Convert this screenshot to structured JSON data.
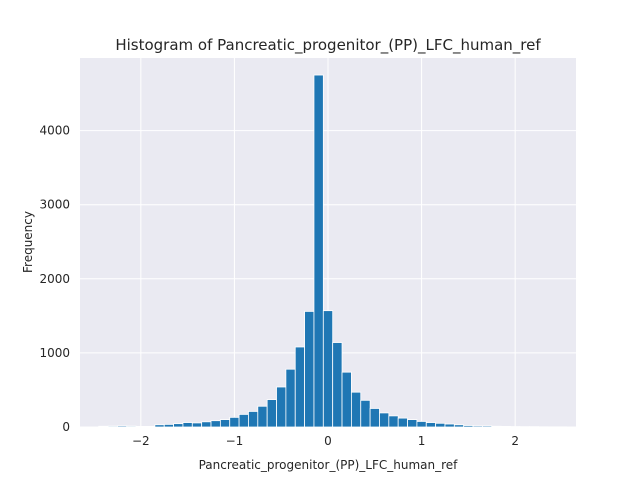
{
  "chart_data": {
    "type": "bar",
    "title": "Histogram of Pancreatic_progenitor_(PP)_LFC_human_ref",
    "xlabel": "Pancreatic_progenitor_(PP)_LFC_human_ref",
    "ylabel": "Frequency",
    "xlim": [
      -2.65,
      2.65
    ],
    "ylim": [
      0,
      4980
    ],
    "xticks": [
      -2,
      -1,
      0,
      1,
      2
    ],
    "xtick_labels": [
      "−2",
      "−1",
      "0",
      "1",
      "2"
    ],
    "yticks": [
      0,
      1000,
      2000,
      3000,
      4000
    ],
    "ytick_labels": [
      "0",
      "1000",
      "2000",
      "3000",
      "4000"
    ],
    "grid": true,
    "bin_start": -2.45,
    "bin_width": 0.1,
    "values": [
      10,
      12,
      15,
      12,
      8,
      8,
      30,
      35,
      45,
      60,
      55,
      70,
      85,
      100,
      130,
      170,
      210,
      280,
      370,
      540,
      780,
      1080,
      1560,
      4750,
      1570,
      1140,
      740,
      470,
      360,
      250,
      190,
      150,
      120,
      100,
      75,
      60,
      50,
      40,
      30,
      20,
      15,
      15,
      10,
      8,
      6,
      5,
      5,
      3,
      2,
      2
    ],
    "color": "#1f77b4",
    "background": "#eaeaf2"
  }
}
